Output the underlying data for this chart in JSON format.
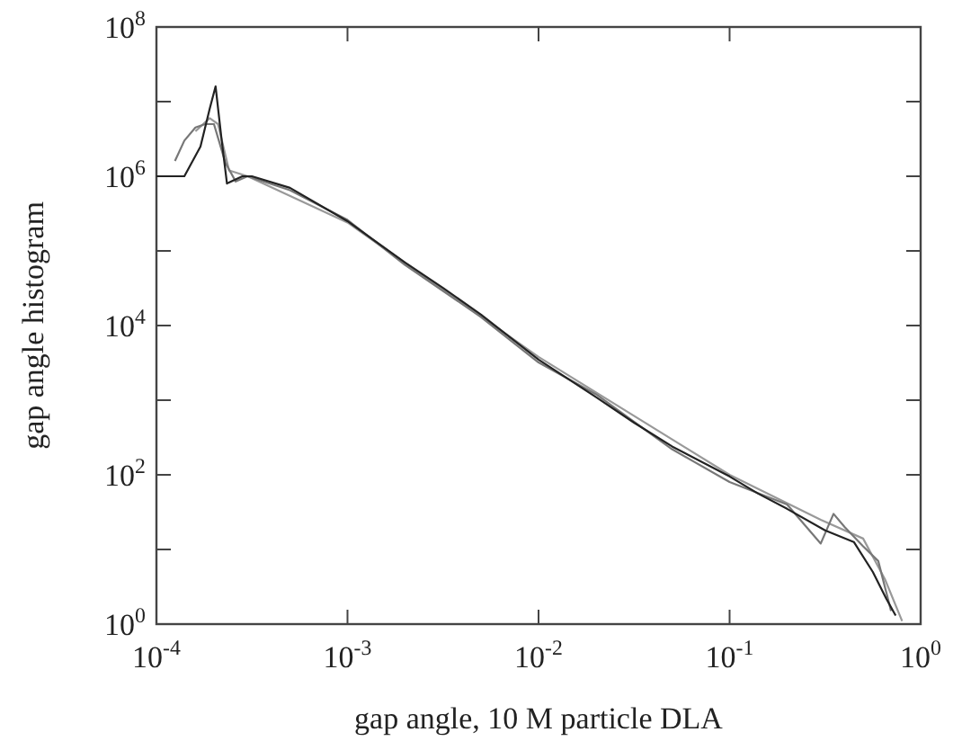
{
  "chart_data": {
    "type": "line",
    "xlabel": "gap angle, 10 M particle DLA",
    "ylabel": "gap angle histogram",
    "log": "xy",
    "grid": false,
    "marker": "none",
    "line_style": "solid",
    "xlim": [
      0.0001,
      1
    ],
    "ylim": [
      1,
      100000000
    ],
    "xticks": [
      {
        "value": 0.0001,
        "label": "10$^{-4}$"
      },
      {
        "value": 0.001,
        "label": "10$^{-3}$"
      },
      {
        "value": 0.01,
        "label": "10$^{-2}$"
      },
      {
        "value": 0.1,
        "label": "10$^{-1}$"
      },
      {
        "value": 1,
        "label": "10$^{0}$"
      }
    ],
    "yticks": [
      {
        "value": 1,
        "label": "10$^{0}$"
      },
      {
        "value": 10,
        "label": null
      },
      {
        "value": 100,
        "label": "10$^{2}$"
      },
      {
        "value": 1000,
        "label": null
      },
      {
        "value": 10000,
        "label": "10$^{4}$"
      },
      {
        "value": 100000,
        "label": null
      },
      {
        "value": 1000000,
        "label": "10$^{6}$"
      },
      {
        "value": 10000000,
        "label": null
      },
      {
        "value": 100000000,
        "label": "10$^{8}$"
      }
    ],
    "series": [
      {
        "color": "#999999",
        "x": [
          0.00016,
          0.00019,
          0.00021,
          0.00024,
          0.0003,
          0.001,
          0.01,
          0.1,
          0.3,
          0.5,
          0.65,
          0.8
        ],
        "values": [
          4000000,
          6000000,
          5000000,
          1200000,
          1000000,
          240000,
          3800,
          100,
          25,
          14,
          4,
          1.1
        ]
      },
      {
        "color": "#777777",
        "x": [
          0.000125,
          0.00014,
          0.00016,
          0.00018,
          0.0002,
          0.00023,
          0.00026,
          0.0003,
          0.0005,
          0.001,
          0.002,
          0.005,
          0.01,
          0.02,
          0.05,
          0.1,
          0.2,
          0.3,
          0.35,
          0.4,
          0.5,
          0.6,
          0.7
        ],
        "values": [
          1600000,
          3000000,
          4500000,
          5000000,
          5000000,
          1500000,
          850000,
          1000000,
          650000,
          260000,
          65000,
          13000,
          3200,
          1200,
          220,
          80,
          40,
          12,
          30,
          20,
          11,
          7,
          1.5
        ]
      },
      {
        "color": "#222222",
        "x": [
          0.0001,
          0.00014,
          0.00017,
          0.00019,
          0.000204,
          0.000219,
          0.000234,
          0.000282,
          0.000316,
          0.0005,
          0.001,
          0.002,
          0.00316,
          0.005,
          0.01,
          0.02,
          0.0316,
          0.05,
          0.1,
          0.141,
          0.2,
          0.316,
          0.447,
          0.562,
          0.66,
          0.74
        ],
        "values": [
          1000000,
          1000000,
          2500000,
          8000000,
          16000000,
          3200000,
          800000,
          1000000,
          1000000,
          700000,
          250000,
          70000,
          32000,
          14000,
          3500,
          1100,
          500,
          240,
          95,
          56,
          35,
          18,
          12.6,
          5,
          2.2,
          1.3
        ]
      }
    ]
  }
}
